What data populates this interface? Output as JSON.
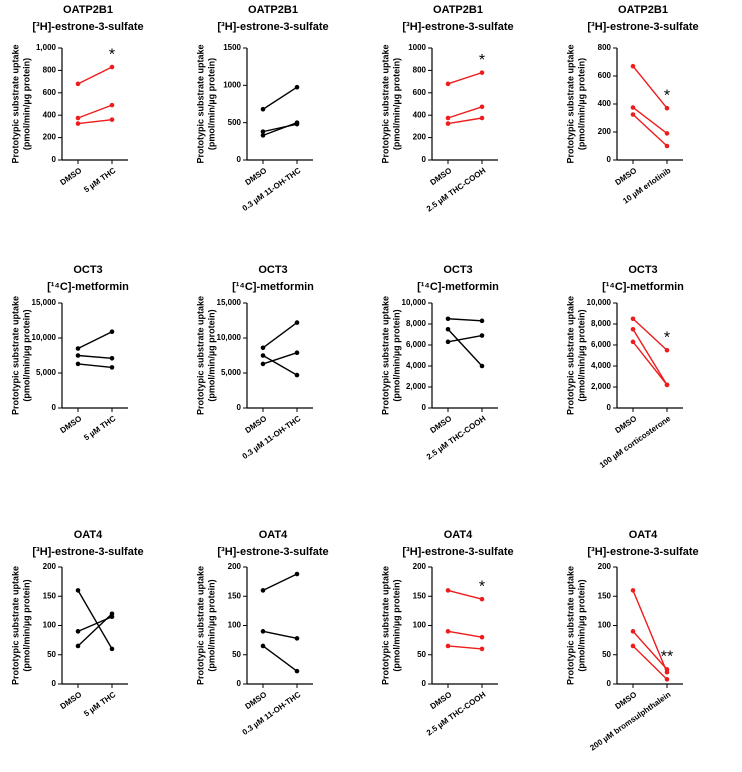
{
  "chart_data": [
    {
      "type": "line",
      "title": [
        "OATP2B1",
        "[³H]-estrone-3-sulfate"
      ],
      "ylabel": [
        "Prototypic substrate uptake",
        "(pmol/min/µg protein)"
      ],
      "categories": [
        "DMSO",
        "5 µM THC"
      ],
      "ylim": [
        0,
        1000
      ],
      "yticks": [
        0,
        200,
        400,
        600,
        800,
        {
          "value": 1000,
          "label": "1,000"
        }
      ],
      "annotation": "*",
      "annotation_color": "#ee1c1c",
      "series": [
        {
          "color": "#ee1c1c",
          "values": [
            680,
            830
          ]
        },
        {
          "color": "#ee1c1c",
          "values": [
            375,
            490
          ]
        },
        {
          "color": "#ee1c1c",
          "values": [
            325,
            360
          ]
        }
      ]
    },
    {
      "type": "line",
      "title": [
        "OATP2B1",
        "[³H]-estrone-3-sulfate"
      ],
      "ylabel": [
        "Prototypic substrate uptake",
        "(pmol/min/µg protein)"
      ],
      "categories": [
        "DMSO",
        "0.3 µM 11-OH-THC"
      ],
      "ylim": [
        0,
        1500
      ],
      "yticks": [
        0,
        500,
        1000,
        1500
      ],
      "series": [
        {
          "color": "#000000",
          "values": [
            680,
            975
          ]
        },
        {
          "color": "#000000",
          "values": [
            380,
            480
          ]
        },
        {
          "color": "#000000",
          "values": [
            330,
            500
          ]
        }
      ]
    },
    {
      "type": "line",
      "title": [
        "OATP2B1",
        "[³H]-estrone-3-sulfate"
      ],
      "ylabel": [
        "Prototypic substrate uptake",
        "(pmol/min/µg protein)"
      ],
      "categories": [
        "DMSO",
        "2.5 µM THC-COOH"
      ],
      "ylim": [
        0,
        1000
      ],
      "yticks": [
        0,
        200,
        400,
        600,
        800,
        1000
      ],
      "annotation": "*",
      "annotation_color": "#ee1c1c",
      "series": [
        {
          "color": "#ee1c1c",
          "values": [
            680,
            780
          ]
        },
        {
          "color": "#ee1c1c",
          "values": [
            375,
            475
          ]
        },
        {
          "color": "#ee1c1c",
          "values": [
            325,
            375
          ]
        }
      ]
    },
    {
      "type": "line",
      "title": [
        "OATP2B1",
        "[³H]-estrone-3-sulfate"
      ],
      "ylabel": [
        "Prototypic substrate uptake",
        "(pmol/min/µg protein)"
      ],
      "categories": [
        "DMSO",
        "10 µM erlotinib"
      ],
      "ylim": [
        0,
        800
      ],
      "yticks": [
        0,
        200,
        400,
        600,
        800
      ],
      "annotation": "*",
      "annotation_color": "#ee1c1c",
      "series": [
        {
          "color": "#ee1c1c",
          "values": [
            670,
            370
          ]
        },
        {
          "color": "#ee1c1c",
          "values": [
            375,
            190
          ]
        },
        {
          "color": "#ee1c1c",
          "values": [
            325,
            100
          ]
        }
      ]
    },
    {
      "type": "line",
      "title": [
        "OCT3",
        "[¹⁴C]-metformin"
      ],
      "ylabel": [
        "Prototypic substrate uptake",
        "(pmol/min/µg protein)"
      ],
      "categories": [
        "DMSO",
        "5 µM THC"
      ],
      "ylim": [
        0,
        15000
      ],
      "yticks": [
        0,
        {
          "value": 5000,
          "label": "5,000"
        },
        {
          "value": 10000,
          "label": "10,000"
        },
        {
          "value": 15000,
          "label": "15,000"
        }
      ],
      "series": [
        {
          "color": "#000000",
          "values": [
            8500,
            10900
          ]
        },
        {
          "color": "#000000",
          "values": [
            7500,
            7100
          ]
        },
        {
          "color": "#000000",
          "values": [
            6300,
            5800
          ]
        }
      ]
    },
    {
      "type": "line",
      "title": [
        "OCT3",
        "[¹⁴C]-metformin"
      ],
      "ylabel": [
        "Prototypic substrate uptake",
        "(pmol/min/µg protein)"
      ],
      "categories": [
        "DMSO",
        "0.3 µM 11-OH-THC"
      ],
      "ylim": [
        0,
        15000
      ],
      "yticks": [
        0,
        {
          "value": 5000,
          "label": "5,000"
        },
        {
          "value": 10000,
          "label": "10,000"
        },
        {
          "value": 15000,
          "label": "15,000"
        }
      ],
      "series": [
        {
          "color": "#000000",
          "values": [
            8600,
            12200
          ]
        },
        {
          "color": "#000000",
          "values": [
            7500,
            4700
          ]
        },
        {
          "color": "#000000",
          "values": [
            6300,
            7900
          ]
        }
      ]
    },
    {
      "type": "line",
      "title": [
        "OCT3",
        "[¹⁴C]-metformin"
      ],
      "ylabel": [
        "Prototypic substrate uptake",
        "(pmol/min/µg protein)"
      ],
      "categories": [
        "DMSO",
        "2.5 µM THC-COOH"
      ],
      "ylim": [
        0,
        10000
      ],
      "yticks": [
        0,
        {
          "value": 2000,
          "label": "2,000"
        },
        {
          "value": 4000,
          "label": "4,000"
        },
        {
          "value": 6000,
          "label": "6,000"
        },
        {
          "value": 8000,
          "label": "8,000"
        },
        {
          "value": 10000,
          "label": "10,000"
        }
      ],
      "series": [
        {
          "color": "#000000",
          "values": [
            8500,
            8300
          ]
        },
        {
          "color": "#000000",
          "values": [
            7500,
            4000
          ]
        },
        {
          "color": "#000000",
          "values": [
            6300,
            6900
          ]
        }
      ]
    },
    {
      "type": "line",
      "title": [
        "OCT3",
        "[¹⁴C]-metformin"
      ],
      "ylabel": [
        "Prototypic substrate uptake",
        "(pmol/min/µg protein)"
      ],
      "categories": [
        "DMSO",
        "100 µM corticosterone"
      ],
      "ylim": [
        0,
        10000
      ],
      "yticks": [
        0,
        {
          "value": 2000,
          "label": "2,000"
        },
        {
          "value": 4000,
          "label": "4,000"
        },
        {
          "value": 6000,
          "label": "6,000"
        },
        {
          "value": 8000,
          "label": "8,000"
        },
        {
          "value": 10000,
          "label": "10,000"
        }
      ],
      "annotation": "*",
      "annotation_color": "#ee1c1c",
      "series": [
        {
          "color": "#ee1c1c",
          "values": [
            8500,
            5500
          ]
        },
        {
          "color": "#ee1c1c",
          "values": [
            7500,
            2200
          ]
        },
        {
          "color": "#ee1c1c",
          "values": [
            6300,
            2200
          ]
        }
      ]
    },
    {
      "type": "line",
      "title": [
        "OAT4",
        "[³H]-estrone-3-sulfate"
      ],
      "ylabel": [
        "Prototypic substrate uptake",
        "(pmol/min/µg protein)"
      ],
      "categories": [
        "DMSO",
        "5 µM THC"
      ],
      "ylim": [
        0,
        200
      ],
      "yticks": [
        0,
        50,
        100,
        150,
        200
      ],
      "series": [
        {
          "color": "#000000",
          "values": [
            160,
            60
          ]
        },
        {
          "color": "#000000",
          "values": [
            90,
            115
          ]
        },
        {
          "color": "#000000",
          "values": [
            65,
            120
          ]
        }
      ]
    },
    {
      "type": "line",
      "title": [
        "OAT4",
        "[³H]-estrone-3-sulfate"
      ],
      "ylabel": [
        "Prototypic substrate uptake",
        "(pmol/min/µg protein)"
      ],
      "categories": [
        "DMSO",
        "0.3 µM 11-OH-THC"
      ],
      "ylim": [
        0,
        200
      ],
      "yticks": [
        0,
        50,
        100,
        150,
        200
      ],
      "series": [
        {
          "color": "#000000",
          "values": [
            160,
            188
          ]
        },
        {
          "color": "#000000",
          "values": [
            90,
            78
          ]
        },
        {
          "color": "#000000",
          "values": [
            65,
            22
          ]
        }
      ]
    },
    {
      "type": "line",
      "title": [
        "OAT4",
        "[³H]-estrone-3-sulfate"
      ],
      "ylabel": [
        "Prototypic substrate uptake",
        "(pmol/min/µg protein)"
      ],
      "categories": [
        "DMSO",
        "2.5 µM THC-COOH"
      ],
      "ylim": [
        0,
        200
      ],
      "yticks": [
        0,
        50,
        100,
        150,
        200
      ],
      "annotation": "*",
      "annotation_color": "#ee1c1c",
      "series": [
        {
          "color": "#ee1c1c",
          "values": [
            160,
            145
          ]
        },
        {
          "color": "#ee1c1c",
          "values": [
            90,
            80
          ]
        },
        {
          "color": "#ee1c1c",
          "values": [
            65,
            60
          ]
        }
      ]
    },
    {
      "type": "line",
      "title": [
        "OAT4",
        "[³H]-estrone-3-sulfate"
      ],
      "ylabel": [
        "Prototypic substrate uptake",
        "(pmol/min/µg protein)"
      ],
      "categories": [
        "DMSO",
        "200 µM bromsulphthalein"
      ],
      "ylim": [
        0,
        200
      ],
      "yticks": [
        0,
        50,
        100,
        150,
        200
      ],
      "annotation": "**",
      "annotation_color": "#ee1c1c",
      "series": [
        {
          "color": "#ee1c1c",
          "values": [
            160,
            20
          ]
        },
        {
          "color": "#ee1c1c",
          "values": [
            90,
            25
          ]
        },
        {
          "color": "#ee1c1c",
          "values": [
            65,
            8
          ]
        }
      ]
    }
  ]
}
